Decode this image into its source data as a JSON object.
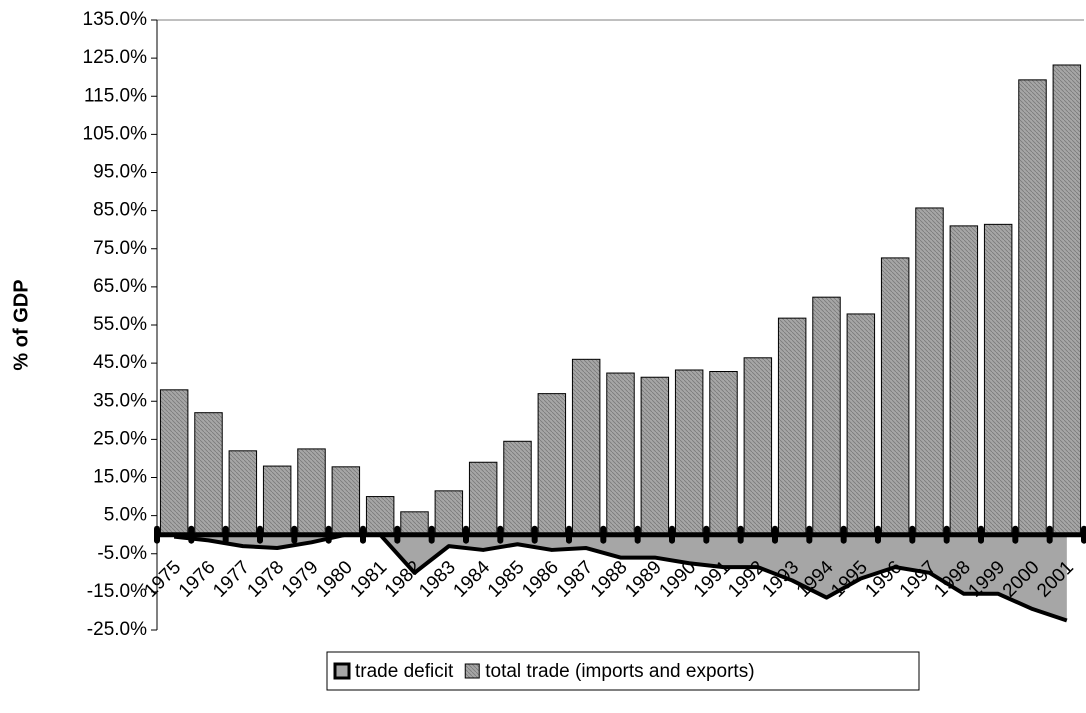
{
  "chart_data": {
    "type": "bar",
    "y_label": "% of GDP",
    "categories": [
      "1975",
      "1976",
      "1977",
      "1978",
      "1979",
      "1980",
      "1981",
      "1982",
      "1983",
      "1984",
      "1985",
      "1986",
      "1987",
      "1988",
      "1989",
      "1990",
      "1991",
      "1992",
      "1993",
      "1994",
      "1995",
      "1996",
      "1997",
      "1998",
      "1999",
      "2000",
      "2001"
    ],
    "series": [
      {
        "name": "trade deficit",
        "type": "area",
        "color": "#000000",
        "fill": "#a6a6a6",
        "values": [
          -0.5,
          -1.5,
          -3,
          -3.5,
          -2,
          0,
          0,
          -10,
          -3,
          -4,
          -2.5,
          -4,
          -3.5,
          -6,
          -6,
          -7.5,
          -8.5,
          -8.5,
          -12,
          -16.5,
          -11.5,
          -8.5,
          -10,
          -15.5,
          -15.5,
          -19.5,
          -22.5
        ]
      },
      {
        "name": "total trade (imports and exports)",
        "type": "bar",
        "color": "#a6a6a6",
        "values": [
          38,
          32,
          22,
          18,
          22.5,
          17.8,
          10,
          6,
          11.5,
          19,
          24.5,
          37,
          46,
          42.4,
          41.3,
          43.2,
          42.8,
          46.4,
          56.8,
          62.3,
          57.9,
          72.6,
          85.7,
          81,
          81.4,
          119.3,
          123.2
        ]
      }
    ],
    "ylim": [
      -25,
      135
    ],
    "yticks": [
      {
        "value": -25,
        "label": "-25.0%"
      },
      {
        "value": -15,
        "label": "-15.0%"
      },
      {
        "value": -5,
        "label": "-5.0%"
      },
      {
        "value": 5,
        "label": "5.0%"
      },
      {
        "value": 15,
        "label": "15.0%"
      },
      {
        "value": 25,
        "label": "25.0%"
      },
      {
        "value": 35,
        "label": "35.0%"
      },
      {
        "value": 45,
        "label": "45.0%"
      },
      {
        "value": 55,
        "label": "55.0%"
      },
      {
        "value": 65,
        "label": "65.0%"
      },
      {
        "value": 75,
        "label": "75.0%"
      },
      {
        "value": 85,
        "label": "85.0%"
      },
      {
        "value": 95,
        "label": "95.0%"
      },
      {
        "value": 105,
        "label": "105.0%"
      },
      {
        "value": 115,
        "label": "115.0%"
      },
      {
        "value": 125,
        "label": "125.0%"
      },
      {
        "value": 135,
        "label": "135.0%"
      }
    ],
    "legend": "bottom"
  }
}
